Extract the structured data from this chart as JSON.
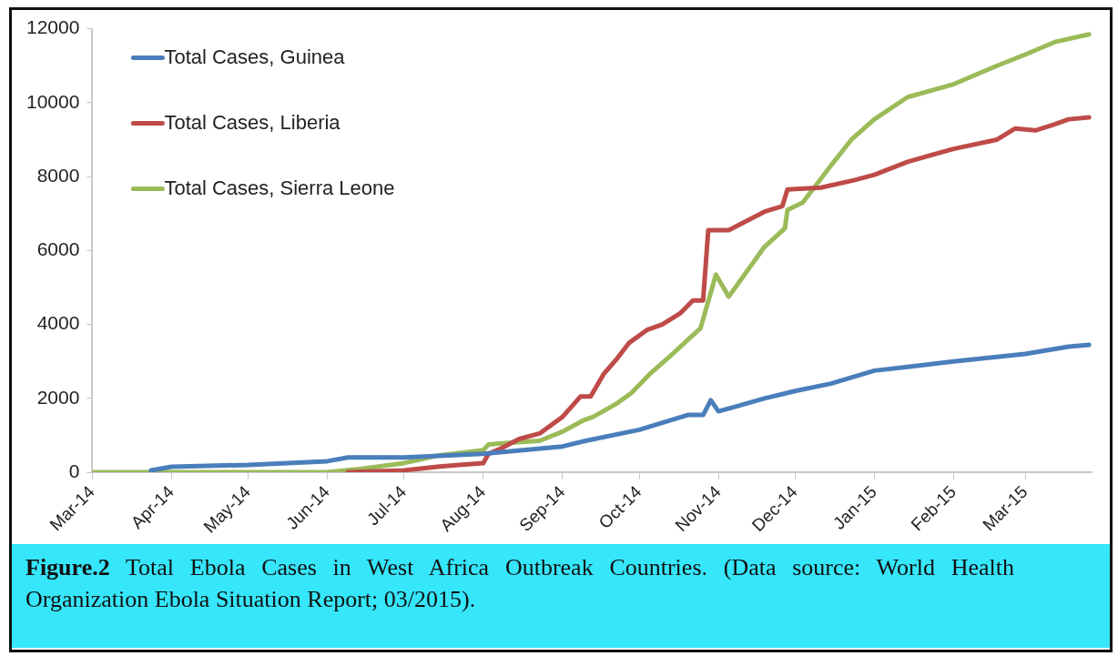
{
  "chart_data": {
    "type": "line",
    "xlim": [
      "2014-03-01",
      "2015-03-27"
    ],
    "xticks": [
      {
        "value": "2014-03-01",
        "label": "Mar-14"
      },
      {
        "value": "2014-04-01",
        "label": "Apr-14"
      },
      {
        "value": "2014-05-01",
        "label": "May-14"
      },
      {
        "value": "2014-06-01",
        "label": "Jun-14"
      },
      {
        "value": "2014-07-01",
        "label": "Jul-14"
      },
      {
        "value": "2014-08-01",
        "label": "Aug-14"
      },
      {
        "value": "2014-09-01",
        "label": "Sep-14"
      },
      {
        "value": "2014-10-01",
        "label": "Oct-14"
      },
      {
        "value": "2014-11-01",
        "label": "Nov-14"
      },
      {
        "value": "2014-12-01",
        "label": "Dec-14"
      },
      {
        "value": "2015-01-01",
        "label": "Jan-15"
      },
      {
        "value": "2015-02-01",
        "label": "Feb-15"
      },
      {
        "value": "2015-03-01",
        "label": "Mar-15"
      }
    ],
    "ylim": [
      0,
      12000
    ],
    "yticks": [
      0,
      2000,
      4000,
      6000,
      8000,
      10000,
      12000
    ],
    "grid": false,
    "legend": "top left",
    "marker": "none",
    "line_style": "solid",
    "series": [
      {
        "name": "Total Cases, Guinea",
        "color": "#4a7ebb",
        "x": [
          "2014-03-24",
          "2014-04-01",
          "2014-05-01",
          "2014-06-01",
          "2014-06-09",
          "2014-07-01",
          "2014-08-01",
          "2014-09-01",
          "2014-09-10",
          "2014-10-01",
          "2014-10-20",
          "2014-10-26",
          "2014-10-29",
          "2014-11-01",
          "2014-11-09",
          "2014-11-19",
          "2014-12-01",
          "2014-12-15",
          "2015-01-01",
          "2015-01-14",
          "2015-02-01",
          "2015-03-01",
          "2015-03-18",
          "2015-03-26"
        ],
        "values": [
          50,
          150,
          200,
          300,
          400,
          400,
          500,
          700,
          850,
          1150,
          1550,
          1550,
          1950,
          1650,
          1800,
          2000,
          2200,
          2400,
          2750,
          2850,
          3000,
          3200,
          3400,
          3450
        ]
      },
      {
        "name": "Total Cases, Liberia",
        "color": "#be4b48",
        "x": [
          "2014-06-09",
          "2014-07-01",
          "2014-07-14",
          "2014-08-01",
          "2014-08-03",
          "2014-08-08",
          "2014-08-15",
          "2014-08-23",
          "2014-09-01",
          "2014-09-08",
          "2014-09-12",
          "2014-09-17",
          "2014-09-22",
          "2014-09-27",
          "2014-10-04",
          "2014-10-10",
          "2014-10-17",
          "2014-10-22",
          "2014-10-26",
          "2014-10-28",
          "2014-11-05",
          "2014-11-19",
          "2014-11-26",
          "2014-11-28",
          "2014-12-11",
          "2014-12-24",
          "2015-01-01",
          "2015-01-14",
          "2015-02-01",
          "2015-02-18",
          "2015-02-25",
          "2015-03-05",
          "2015-03-12",
          "2015-03-18",
          "2015-03-26"
        ],
        "values": [
          0,
          50,
          150,
          250,
          500,
          650,
          900,
          1050,
          1500,
          2050,
          2050,
          2650,
          3050,
          3500,
          3850,
          4000,
          4300,
          4650,
          4650,
          6550,
          6550,
          7050,
          7200,
          7650,
          7700,
          7900,
          8050,
          8400,
          8750,
          9000,
          9300,
          9250,
          9400,
          9550,
          9600
        ]
      },
      {
        "name": "Total Cases, Sierra Leone",
        "color": "#9bbb59",
        "x": [
          "2014-03-01",
          "2014-06-01",
          "2014-06-15",
          "2014-07-01",
          "2014-07-14",
          "2014-08-01",
          "2014-08-03",
          "2014-08-12",
          "2014-08-23",
          "2014-09-01",
          "2014-09-09",
          "2014-09-13",
          "2014-09-22",
          "2014-09-28",
          "2014-10-05",
          "2014-10-14",
          "2014-10-25",
          "2014-10-31",
          "2014-11-05",
          "2014-11-19",
          "2014-11-27",
          "2014-11-28",
          "2014-12-04",
          "2014-12-15",
          "2014-12-23",
          "2015-01-01",
          "2015-01-14",
          "2015-02-01",
          "2015-02-18",
          "2015-03-01",
          "2015-03-13",
          "2015-03-26"
        ],
        "values": [
          0,
          0,
          100,
          250,
          450,
          600,
          750,
          800,
          850,
          1100,
          1400,
          1500,
          1850,
          2150,
          2650,
          3200,
          3900,
          5350,
          4750,
          6100,
          6600,
          7100,
          7300,
          8300,
          9000,
          9550,
          10150,
          10500,
          11000,
          11300,
          11650,
          11850
        ]
      }
    ],
    "annotations": [
      "Figure.2 Total Ebola Cases in West Africa Outbreak Countries. (Data source: World Health Organization Ebola Situation Report; 03/2015)."
    ]
  }
}
